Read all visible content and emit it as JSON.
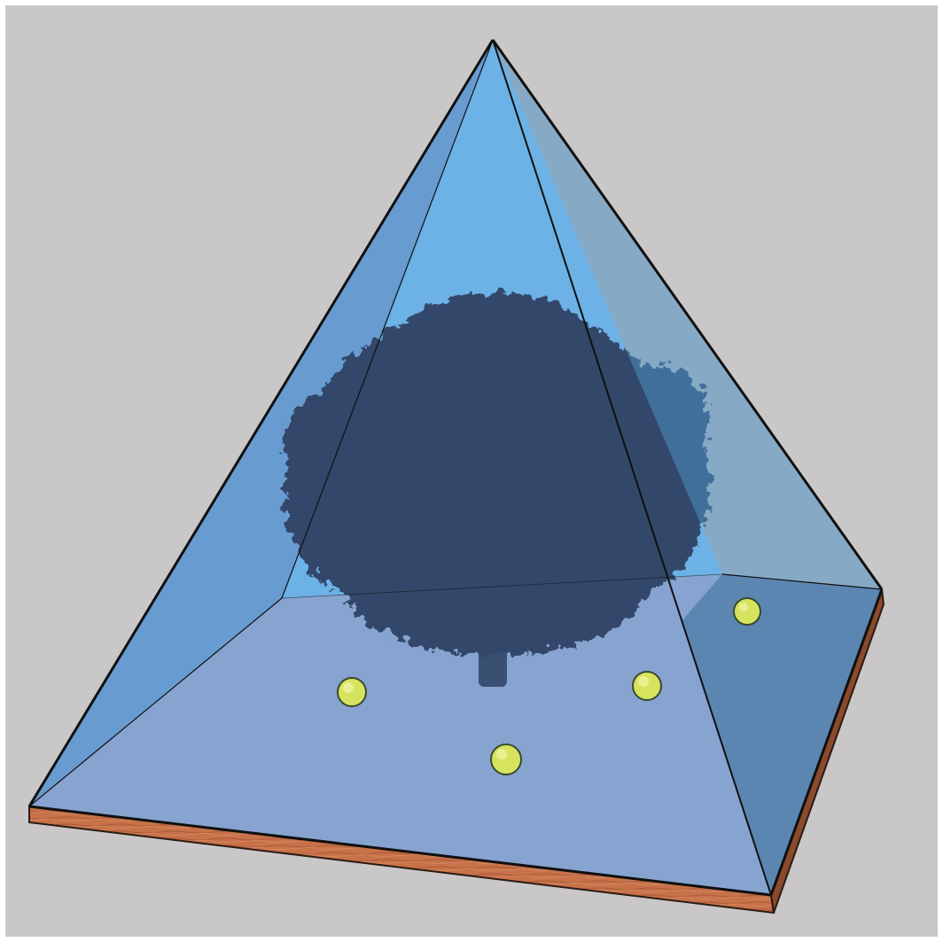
{
  "scene": {
    "subject": "glass-pyramid-enclosure",
    "background_color": "#c9c7c8",
    "frame_color": "#ffffff",
    "colors": {
      "pyramid_left_face": "#5f98d1",
      "pyramid_back_face": "#67b1e8",
      "pyramid_right_face": "#4f8fc2",
      "pyramid_floor": "#87a3cf",
      "pyramid_right_floor": "#6a7b9c",
      "edge_stroke": "#101010",
      "tree_canopy": "#33476b",
      "tree_trunk": "#3a5073",
      "base_wood": "#c8724a",
      "base_wood_dark": "#8a4a2c",
      "ball_fill": "#d6e35f",
      "ball_highlight": "#f1f6a8"
    },
    "elements": {
      "pyramid": "pyramid-shape",
      "tree": "tree-silhouette",
      "base": "wooden-base-plate",
      "balls": "tennis-ball-shapes"
    }
  }
}
